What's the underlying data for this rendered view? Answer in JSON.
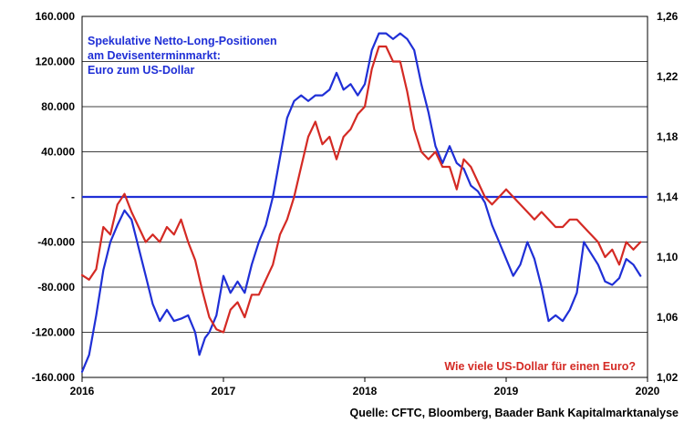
{
  "chart_data": {
    "type": "line",
    "colors": {
      "blue": "#1f2fd6",
      "red": "#d42a24",
      "grid": "#000000"
    },
    "annotation_blue": [
      "Spekulative Netto-Long-Positionen",
      "am Devisenterminmarkt:",
      "Euro zum US-Dollar"
    ],
    "annotation_red": "Wie viele US-Dollar für einen Euro?",
    "source": "Quelle: CFTC, Bloomberg, Baader Bank Kapitalmarktanalyse",
    "x_range": [
      2016.0,
      2020.0
    ],
    "x_tick_labels": [
      "2016",
      "2017",
      "2018",
      "2019",
      "2020"
    ],
    "y_left_range": [
      -160000,
      160000
    ],
    "y_left_tick_labels": [
      "160.000",
      "120.000",
      "80.000",
      "40.000",
      "-",
      "-40.000",
      "-80.000",
      "-120.000",
      "-160.000"
    ],
    "y_right_range": [
      1.02,
      1.26
    ],
    "y_right_tick_labels": [
      "1,26",
      "1,22",
      "1,18",
      "1,14",
      "1,10",
      "1,06",
      "1,02"
    ],
    "grid": "horizontal",
    "series": [
      {
        "axis": "left",
        "color": "blue",
        "points": [
          [
            2016.0,
            -155000
          ],
          [
            2016.05,
            -140000
          ],
          [
            2016.1,
            -105000
          ],
          [
            2016.15,
            -65000
          ],
          [
            2016.2,
            -40000
          ],
          [
            2016.25,
            -25000
          ],
          [
            2016.3,
            -12000
          ],
          [
            2016.35,
            -20000
          ],
          [
            2016.4,
            -45000
          ],
          [
            2016.45,
            -70000
          ],
          [
            2016.5,
            -95000
          ],
          [
            2016.55,
            -110000
          ],
          [
            2016.6,
            -100000
          ],
          [
            2016.65,
            -110000
          ],
          [
            2016.7,
            -108000
          ],
          [
            2016.75,
            -105000
          ],
          [
            2016.8,
            -120000
          ],
          [
            2016.83,
            -140000
          ],
          [
            2016.87,
            -125000
          ],
          [
            2016.9,
            -120000
          ],
          [
            2016.95,
            -105000
          ],
          [
            2017.0,
            -70000
          ],
          [
            2017.05,
            -85000
          ],
          [
            2017.1,
            -75000
          ],
          [
            2017.15,
            -85000
          ],
          [
            2017.2,
            -60000
          ],
          [
            2017.25,
            -40000
          ],
          [
            2017.3,
            -25000
          ],
          [
            2017.35,
            0
          ],
          [
            2017.4,
            35000
          ],
          [
            2017.45,
            70000
          ],
          [
            2017.5,
            85000
          ],
          [
            2017.55,
            90000
          ],
          [
            2017.6,
            85000
          ],
          [
            2017.65,
            90000
          ],
          [
            2017.7,
            90000
          ],
          [
            2017.75,
            95000
          ],
          [
            2017.8,
            110000
          ],
          [
            2017.85,
            95000
          ],
          [
            2017.9,
            100000
          ],
          [
            2017.95,
            90000
          ],
          [
            2018.0,
            100000
          ],
          [
            2018.05,
            130000
          ],
          [
            2018.1,
            145000
          ],
          [
            2018.15,
            145000
          ],
          [
            2018.2,
            140000
          ],
          [
            2018.25,
            145000
          ],
          [
            2018.3,
            140000
          ],
          [
            2018.35,
            130000
          ],
          [
            2018.4,
            100000
          ],
          [
            2018.45,
            75000
          ],
          [
            2018.5,
            45000
          ],
          [
            2018.55,
            30000
          ],
          [
            2018.6,
            45000
          ],
          [
            2018.65,
            30000
          ],
          [
            2018.7,
            25000
          ],
          [
            2018.75,
            10000
          ],
          [
            2018.8,
            5000
          ],
          [
            2018.85,
            -5000
          ],
          [
            2018.9,
            -25000
          ],
          [
            2018.95,
            -40000
          ],
          [
            2019.0,
            -55000
          ],
          [
            2019.05,
            -70000
          ],
          [
            2019.1,
            -60000
          ],
          [
            2019.15,
            -40000
          ],
          [
            2019.2,
            -55000
          ],
          [
            2019.25,
            -80000
          ],
          [
            2019.3,
            -110000
          ],
          [
            2019.35,
            -105000
          ],
          [
            2019.4,
            -110000
          ],
          [
            2019.45,
            -100000
          ],
          [
            2019.5,
            -85000
          ],
          [
            2019.55,
            -40000
          ],
          [
            2019.6,
            -50000
          ],
          [
            2019.65,
            -60000
          ],
          [
            2019.7,
            -75000
          ],
          [
            2019.75,
            -78000
          ],
          [
            2019.8,
            -72000
          ],
          [
            2019.85,
            -55000
          ],
          [
            2019.9,
            -60000
          ],
          [
            2019.95,
            -70000
          ]
        ]
      },
      {
        "axis": "right",
        "color": "red",
        "points": [
          [
            2016.0,
            1.088
          ],
          [
            2016.05,
            1.085
          ],
          [
            2016.1,
            1.092
          ],
          [
            2016.15,
            1.12
          ],
          [
            2016.2,
            1.115
          ],
          [
            2016.25,
            1.135
          ],
          [
            2016.3,
            1.142
          ],
          [
            2016.35,
            1.13
          ],
          [
            2016.4,
            1.12
          ],
          [
            2016.45,
            1.11
          ],
          [
            2016.5,
            1.115
          ],
          [
            2016.55,
            1.11
          ],
          [
            2016.6,
            1.12
          ],
          [
            2016.65,
            1.115
          ],
          [
            2016.7,
            1.125
          ],
          [
            2016.75,
            1.11
          ],
          [
            2016.8,
            1.098
          ],
          [
            2016.85,
            1.078
          ],
          [
            2016.9,
            1.06
          ],
          [
            2016.95,
            1.052
          ],
          [
            2017.0,
            1.05
          ],
          [
            2017.05,
            1.065
          ],
          [
            2017.1,
            1.07
          ],
          [
            2017.15,
            1.06
          ],
          [
            2017.2,
            1.075
          ],
          [
            2017.25,
            1.075
          ],
          [
            2017.3,
            1.085
          ],
          [
            2017.35,
            1.095
          ],
          [
            2017.4,
            1.115
          ],
          [
            2017.45,
            1.125
          ],
          [
            2017.5,
            1.14
          ],
          [
            2017.55,
            1.16
          ],
          [
            2017.6,
            1.18
          ],
          [
            2017.65,
            1.19
          ],
          [
            2017.7,
            1.175
          ],
          [
            2017.75,
            1.18
          ],
          [
            2017.8,
            1.165
          ],
          [
            2017.85,
            1.18
          ],
          [
            2017.9,
            1.185
          ],
          [
            2017.95,
            1.195
          ],
          [
            2018.0,
            1.2
          ],
          [
            2018.05,
            1.225
          ],
          [
            2018.1,
            1.24
          ],
          [
            2018.15,
            1.24
          ],
          [
            2018.2,
            1.23
          ],
          [
            2018.25,
            1.23
          ],
          [
            2018.3,
            1.21
          ],
          [
            2018.35,
            1.185
          ],
          [
            2018.4,
            1.17
          ],
          [
            2018.45,
            1.165
          ],
          [
            2018.5,
            1.17
          ],
          [
            2018.55,
            1.16
          ],
          [
            2018.6,
            1.16
          ],
          [
            2018.65,
            1.145
          ],
          [
            2018.7,
            1.165
          ],
          [
            2018.75,
            1.16
          ],
          [
            2018.8,
            1.15
          ],
          [
            2018.85,
            1.14
          ],
          [
            2018.9,
            1.135
          ],
          [
            2018.95,
            1.14
          ],
          [
            2019.0,
            1.145
          ],
          [
            2019.05,
            1.14
          ],
          [
            2019.1,
            1.135
          ],
          [
            2019.15,
            1.13
          ],
          [
            2019.2,
            1.125
          ],
          [
            2019.25,
            1.13
          ],
          [
            2019.3,
            1.125
          ],
          [
            2019.35,
            1.12
          ],
          [
            2019.4,
            1.12
          ],
          [
            2019.45,
            1.125
          ],
          [
            2019.5,
            1.125
          ],
          [
            2019.55,
            1.12
          ],
          [
            2019.6,
            1.115
          ],
          [
            2019.65,
            1.11
          ],
          [
            2019.7,
            1.1
          ],
          [
            2019.75,
            1.105
          ],
          [
            2019.8,
            1.095
          ],
          [
            2019.85,
            1.11
          ],
          [
            2019.9,
            1.105
          ],
          [
            2019.95,
            1.11
          ]
        ]
      }
    ]
  }
}
